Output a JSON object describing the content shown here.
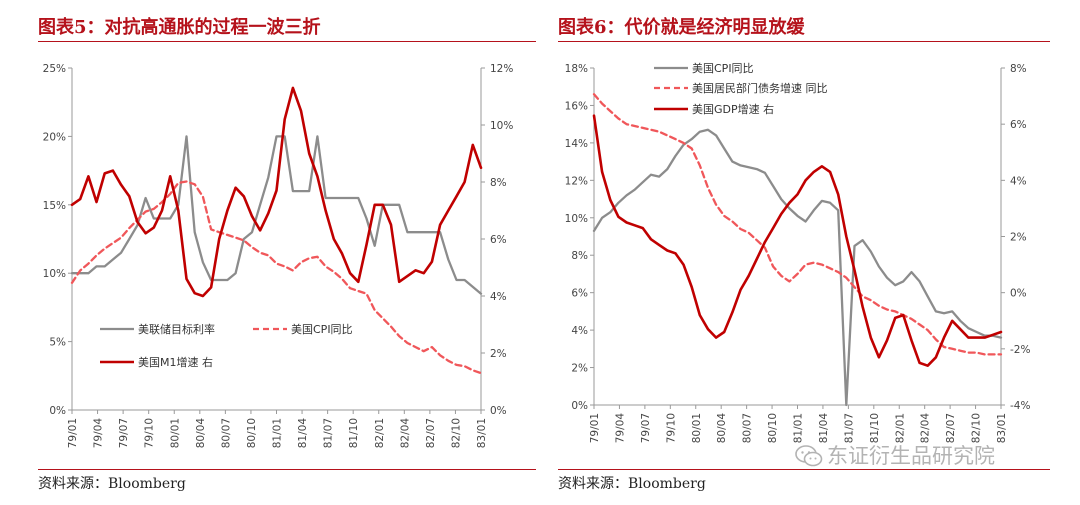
{
  "charts": [
    {
      "title": "图表5：对抗高通胀的过程一波三折",
      "source": "资料来源：Bloomberg",
      "left_axis": {
        "ticks": [
          "0%",
          "5%",
          "10%",
          "15%",
          "20%",
          "25%"
        ],
        "min": 0,
        "max": 25
      },
      "right_axis": {
        "ticks": [
          "0%",
          "2%",
          "4%",
          "6%",
          "8%",
          "10%",
          "12%"
        ],
        "min": 0,
        "max": 12
      },
      "x_ticks": [
        "79/01",
        "79/04",
        "79/07",
        "79/10",
        "80/01",
        "80/04",
        "80/07",
        "80/10",
        "81/01",
        "81/04",
        "81/07",
        "81/10",
        "82/01",
        "82/04",
        "82/07",
        "82/10",
        "83/01"
      ],
      "legend": [
        "美联储目标利率",
        "美国CPI同比",
        "美国M1增速 右"
      ]
    },
    {
      "title": "图表6：代价就是经济明显放缓",
      "source": "资料来源：Bloomberg",
      "left_axis": {
        "ticks": [
          "0%",
          "2%",
          "4%",
          "6%",
          "8%",
          "10%",
          "12%",
          "14%",
          "16%",
          "18%"
        ],
        "min": 0,
        "max": 18
      },
      "right_axis": {
        "ticks": [
          "-4%",
          "-2%",
          "0%",
          "2%",
          "4%",
          "6%",
          "8%"
        ],
        "min": -4,
        "max": 8
      },
      "x_ticks": [
        "79/01",
        "79/04",
        "79/07",
        "79/10",
        "80/01",
        "80/04",
        "80/07",
        "80/10",
        "81/01",
        "81/04",
        "81/07",
        "81/10",
        "82/01",
        "82/04",
        "82/07",
        "82/10",
        "83/01"
      ],
      "legend": [
        "美国CPI同比",
        "美国居民部门债务增速 同比",
        "美国GDP增速 右"
      ]
    }
  ],
  "watermark": "东证衍生品研究院",
  "chart_data": [
    {
      "type": "line",
      "title": "图表5：对抗高通胀的过程一波三折",
      "x": [
        0,
        1,
        2,
        3,
        4,
        5,
        6,
        7,
        8,
        9,
        10,
        11,
        12,
        13,
        14,
        15,
        16,
        17,
        18,
        19,
        20,
        21,
        22,
        23,
        24,
        25,
        26,
        27,
        28,
        29,
        30,
        31,
        32,
        33,
        34,
        35,
        36,
        37,
        38,
        39,
        40,
        41,
        42,
        43,
        44,
        45,
        46,
        47,
        48,
        49,
        50
      ],
      "x_tick_labels": [
        "79/01",
        "79/04",
        "79/07",
        "79/10",
        "80/01",
        "80/04",
        "80/07",
        "80/10",
        "81/01",
        "81/04",
        "81/07",
        "81/10",
        "82/01",
        "82/04",
        "82/07",
        "82/10",
        "83/01"
      ],
      "series": [
        {
          "name": "美联储目标利率",
          "axis": "left",
          "color": "#8c8c8c",
          "style": "solid",
          "values": [
            10,
            10,
            10,
            10.5,
            10.5,
            11,
            11.5,
            12.5,
            13.5,
            15.5,
            14,
            14,
            14,
            15,
            20,
            13,
            10.8,
            9.5,
            9.5,
            9.5,
            10,
            12.5,
            13,
            15,
            17,
            20,
            20,
            16,
            16,
            16,
            20,
            15.5,
            15.5,
            15.5,
            15.5,
            15.5,
            14,
            12,
            15,
            15,
            15,
            13,
            13,
            13,
            13,
            13,
            11,
            9.5,
            9.5,
            9,
            8.5
          ]
        },
        {
          "name": "美国CPI同比",
          "axis": "left",
          "color": "#f0575a",
          "style": "dashed",
          "values": [
            9.3,
            10.2,
            10.7,
            11.3,
            11.8,
            12.2,
            12.6,
            13.3,
            13.9,
            14.5,
            14.7,
            15.2,
            15.8,
            16.6,
            16.7,
            16.5,
            15.6,
            13.2,
            13.0,
            12.8,
            12.6,
            12.4,
            11.9,
            11.5,
            11.3,
            10.7,
            10.5,
            10.2,
            10.8,
            11.1,
            11.2,
            10.5,
            10.1,
            9.6,
            8.9,
            8.7,
            8.5,
            7.3,
            6.7,
            6.1,
            5.4,
            4.9,
            4.6,
            4.3,
            4.6,
            4.0,
            3.6,
            3.3,
            3.2,
            2.9,
            2.7
          ]
        },
        {
          "name": "美国M1增速 右",
          "axis": "right",
          "color": "#c00000",
          "style": "solid",
          "values": [
            7.2,
            7.4,
            8.2,
            7.3,
            8.3,
            8.4,
            7.9,
            7.5,
            6.6,
            6.2,
            6.4,
            7.0,
            8.2,
            7.0,
            4.6,
            4.1,
            4.0,
            4.3,
            6.0,
            7.0,
            7.8,
            7.5,
            6.8,
            6.3,
            6.9,
            7.7,
            10.2,
            11.3,
            10.5,
            9.0,
            8.2,
            7.0,
            6.0,
            5.5,
            4.8,
            4.5,
            5.8,
            7.2,
            7.2,
            6.5,
            4.5,
            4.7,
            4.9,
            4.8,
            5.2,
            6.5,
            7.0,
            7.5,
            8.0,
            9.3,
            8.5
          ]
        }
      ]
    },
    {
      "type": "line",
      "title": "图表6：代价就是经济明显放缓",
      "x": [
        0,
        1,
        2,
        3,
        4,
        5,
        6,
        7,
        8,
        9,
        10,
        11,
        12,
        13,
        14,
        15,
        16,
        17,
        18,
        19,
        20,
        21,
        22,
        23,
        24,
        25,
        26,
        27,
        28,
        29,
        30,
        31,
        32,
        33,
        34,
        35,
        36,
        37,
        38,
        39,
        40,
        41,
        42,
        43,
        44,
        45,
        46,
        47,
        48,
        49,
        50
      ],
      "x_tick_labels": [
        "79/01",
        "79/04",
        "79/07",
        "79/10",
        "80/01",
        "80/04",
        "80/07",
        "80/10",
        "81/01",
        "81/04",
        "81/07",
        "81/10",
        "82/01",
        "82/04",
        "82/07",
        "82/10",
        "83/01"
      ],
      "series": [
        {
          "name": "美国CPI同比",
          "axis": "left",
          "color": "#8c8c8c",
          "style": "solid",
          "values": [
            9.3,
            10.0,
            10.3,
            10.8,
            11.2,
            11.5,
            11.9,
            12.3,
            12.2,
            12.6,
            13.3,
            13.9,
            14.2,
            14.6,
            14.7,
            14.4,
            13.7,
            13.0,
            12.8,
            12.7,
            12.6,
            12.4,
            11.7,
            11.0,
            10.5,
            10.1,
            9.8,
            10.4,
            10.9,
            10.8,
            10.4,
            0,
            8.5,
            8.8,
            8.2,
            7.4,
            6.8,
            6.4,
            6.6,
            7.1,
            6.6,
            5.8,
            5.0,
            4.9,
            5.0,
            4.5,
            4.1,
            3.9,
            3.7,
            3.7,
            3.6
          ]
        },
        {
          "name": "美国居民部门债务增速 同比",
          "axis": "left",
          "color": "#f0575a",
          "style": "dashed",
          "values": [
            16.6,
            16.1,
            15.7,
            15.3,
            15.0,
            14.9,
            14.8,
            14.7,
            14.6,
            14.4,
            14.2,
            14.0,
            13.7,
            12.8,
            11.6,
            10.7,
            10.1,
            9.8,
            9.4,
            9.2,
            8.8,
            8.4,
            7.4,
            6.9,
            6.6,
            7.0,
            7.5,
            7.6,
            7.5,
            7.3,
            7.1,
            6.8,
            6.3,
            5.8,
            5.6,
            5.3,
            5.1,
            5.0,
            4.8,
            4.6,
            4.3,
            4.0,
            3.5,
            3.1,
            3.0,
            2.9,
            2.8,
            2.8,
            2.7,
            2.7,
            2.7
          ]
        },
        {
          "name": "美国GDP增速 右",
          "axis": "right",
          "color": "#c00000",
          "style": "solid",
          "values": [
            6.3,
            4.3,
            3.3,
            2.7,
            2.5,
            2.4,
            2.3,
            1.9,
            1.7,
            1.5,
            1.4,
            1.0,
            0.2,
            -0.8,
            -1.3,
            -1.6,
            -1.4,
            -0.7,
            0.1,
            0.6,
            1.2,
            1.8,
            2.3,
            2.8,
            3.2,
            3.5,
            4.0,
            4.3,
            4.5,
            4.3,
            3.5,
            2.0,
            0.8,
            -0.5,
            -1.6,
            -2.3,
            -1.7,
            -0.9,
            -0.8,
            -1.7,
            -2.5,
            -2.6,
            -2.3,
            -1.6,
            -1.0,
            -1.3,
            -1.6,
            -1.6,
            -1.6,
            -1.5,
            -1.4
          ]
        }
      ]
    }
  ]
}
